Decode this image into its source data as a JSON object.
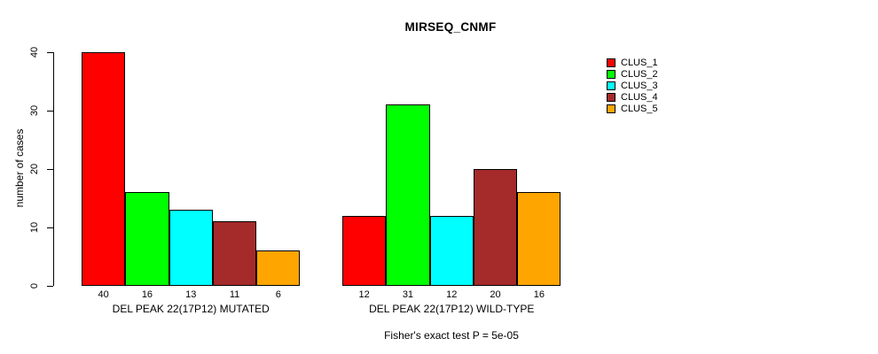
{
  "chart_data": {
    "type": "bar",
    "title": "MIRSEQ_CNMF",
    "ylabel": "number of cases",
    "xlabel": "",
    "ylim": [
      0,
      40
    ],
    "yticks": [
      0,
      10,
      20,
      30,
      40
    ],
    "grid": false,
    "legend_position": "right",
    "categories": [
      "DEL PEAK 22(17P12) MUTATED",
      "DEL PEAK 22(17P12) WILD-TYPE"
    ],
    "series": [
      {
        "name": "CLUS_1",
        "color": "#FF0000",
        "values": [
          40,
          12
        ]
      },
      {
        "name": "CLUS_2",
        "color": "#00FF00",
        "values": [
          16,
          31
        ]
      },
      {
        "name": "CLUS_3",
        "color": "#00FFFF",
        "values": [
          13,
          12
        ]
      },
      {
        "name": "CLUS_4",
        "color": "#A52A2A",
        "values": [
          11,
          20
        ]
      },
      {
        "name": "CLUS_5",
        "color": "#FFA500",
        "values": [
          6,
          16
        ]
      }
    ],
    "bar_labels": [
      [
        40,
        16,
        13,
        11,
        6
      ],
      [
        12,
        31,
        12,
        20,
        16
      ]
    ],
    "annotation": "Fisher's exact test P = 5e-05"
  }
}
